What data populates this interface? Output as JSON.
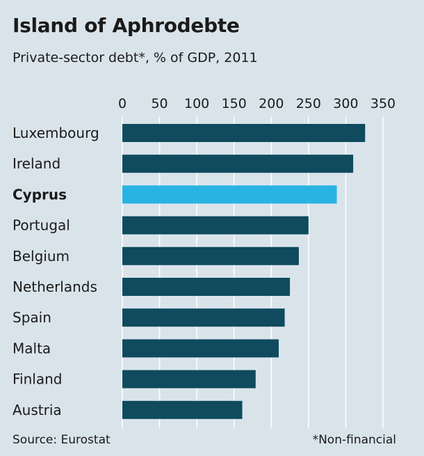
{
  "header": {
    "title": "Island of Aphrodebte",
    "subtitle": "Private-sector debt*, % of GDP, 2011"
  },
  "footer": {
    "source": "Source: Eurostat",
    "footnote": "*Non-financial"
  },
  "colors": {
    "background": "#d9e4ea",
    "bar": "#0f4a5e",
    "highlight_bar": "#29b3e3",
    "gridline": "#ffffff"
  },
  "chart_data": {
    "type": "bar",
    "orientation": "horizontal",
    "title": "Island of Aphrodebte",
    "subtitle": "Private-sector debt*, % of GDP, 2011",
    "categories": [
      "Luxembourg",
      "Ireland",
      "Cyprus",
      "Portugal",
      "Belgium",
      "Netherlands",
      "Spain",
      "Malta",
      "Finland",
      "Austria"
    ],
    "values": [
      326,
      310,
      288,
      250,
      237,
      225,
      218,
      210,
      179,
      161
    ],
    "highlight": "Cyprus",
    "xlim": [
      0,
      350
    ],
    "xticks": [
      0,
      50,
      100,
      150,
      200,
      250,
      300,
      350
    ],
    "axis_position": "top",
    "grid": true
  }
}
